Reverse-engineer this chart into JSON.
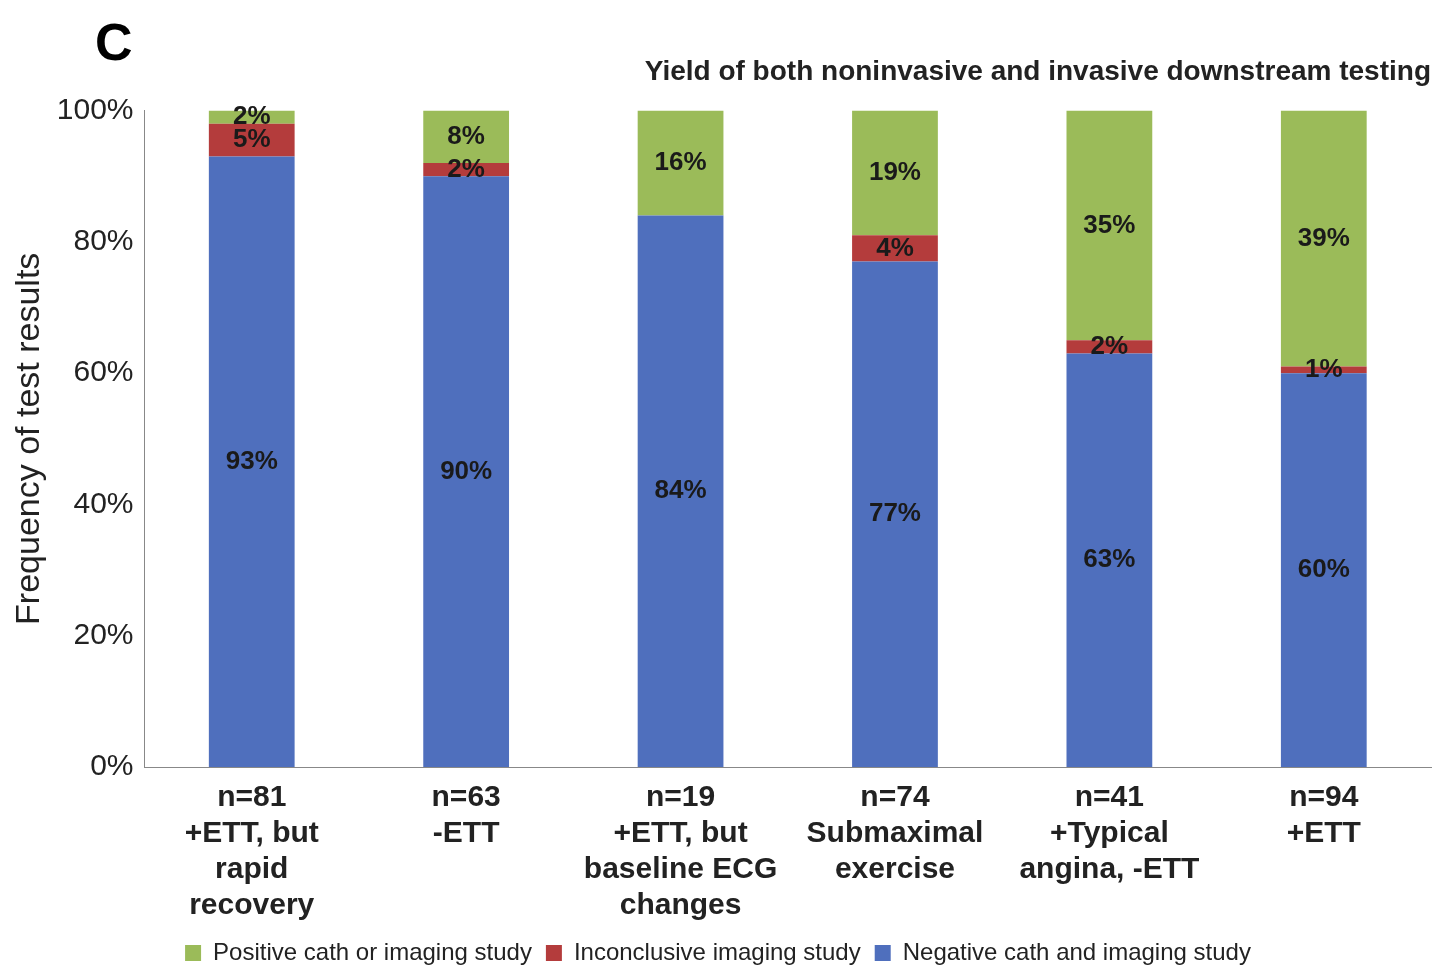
{
  "chart_data": {
    "type": "bar",
    "stacked": true,
    "title": "Yield of both noninvasive and invasive downstream testing",
    "ylabel": "Frequency of test results",
    "annotations": [
      "C"
    ],
    "categories": [
      "n=81\n+ETT, but\nrapid\nrecovery",
      "n=63\n-ETT",
      "n=19\n+ETT, but\nbaseline ECG\nchanges",
      "n=74\nSubmaximal\nexercise",
      "n=41\n+Typical\nangina, -ETT",
      "n=94\n+ETT"
    ],
    "series": [
      {
        "name": "Negative cath and imaging study",
        "color": "#4f6fbd",
        "values": [
          93,
          90,
          84,
          77,
          63,
          60
        ],
        "value_labels": [
          "93%",
          "90%",
          "84%",
          "77%",
          "63%",
          "60%"
        ]
      },
      {
        "name": "Inconclusive imaging study",
        "color": "#b43c3c",
        "values": [
          5,
          2,
          null,
          4,
          2,
          1
        ],
        "value_labels": [
          "5%",
          "2%",
          null,
          "4%",
          "2%",
          "1%"
        ]
      },
      {
        "name": "Positive cath or imaging study",
        "color": "#9bbb59",
        "values": [
          2,
          8,
          16,
          19,
          35,
          39
        ],
        "value_labels": [
          "2%",
          "8%",
          "16%",
          "19%",
          "35%",
          "39%"
        ]
      }
    ],
    "ylim": [
      0,
      100
    ],
    "yticks": [
      {
        "value": 0,
        "label": "0%"
      },
      {
        "value": 20,
        "label": "20%"
      },
      {
        "value": 40,
        "label": "40%"
      },
      {
        "value": 60,
        "label": "60%"
      },
      {
        "value": 80,
        "label": "80%"
      },
      {
        "value": 100,
        "label": "100%"
      }
    ],
    "grid": false,
    "legend": "bottom"
  }
}
